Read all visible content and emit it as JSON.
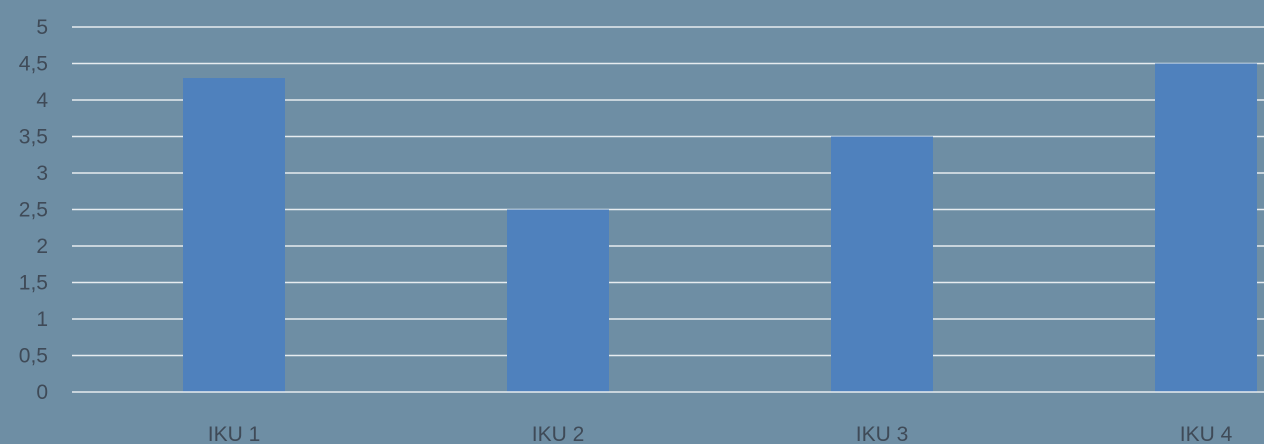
{
  "chart_data": {
    "type": "bar",
    "title": "",
    "xlabel": "",
    "ylabel": "",
    "categories": [
      "IKU 1",
      "IKU 2",
      "IKU 3",
      "IKU 4"
    ],
    "values": [
      4.3,
      2.5,
      3.5,
      4.5
    ],
    "ylim": [
      0,
      5
    ],
    "y_ticks": [
      "0",
      "0,5",
      "1",
      "1,5",
      "2",
      "2,5",
      "3",
      "3,5",
      "4",
      "4,5",
      "5"
    ],
    "y_tick_values": [
      0,
      0.5,
      1,
      1.5,
      2,
      2.5,
      3,
      3.5,
      4,
      4.5,
      5
    ],
    "grid": true,
    "legend": "none",
    "colors": {
      "background": "#6e8ea4",
      "bar": "#4f81bd",
      "grid": "#e6ebef",
      "text": "#3f4a57"
    }
  }
}
